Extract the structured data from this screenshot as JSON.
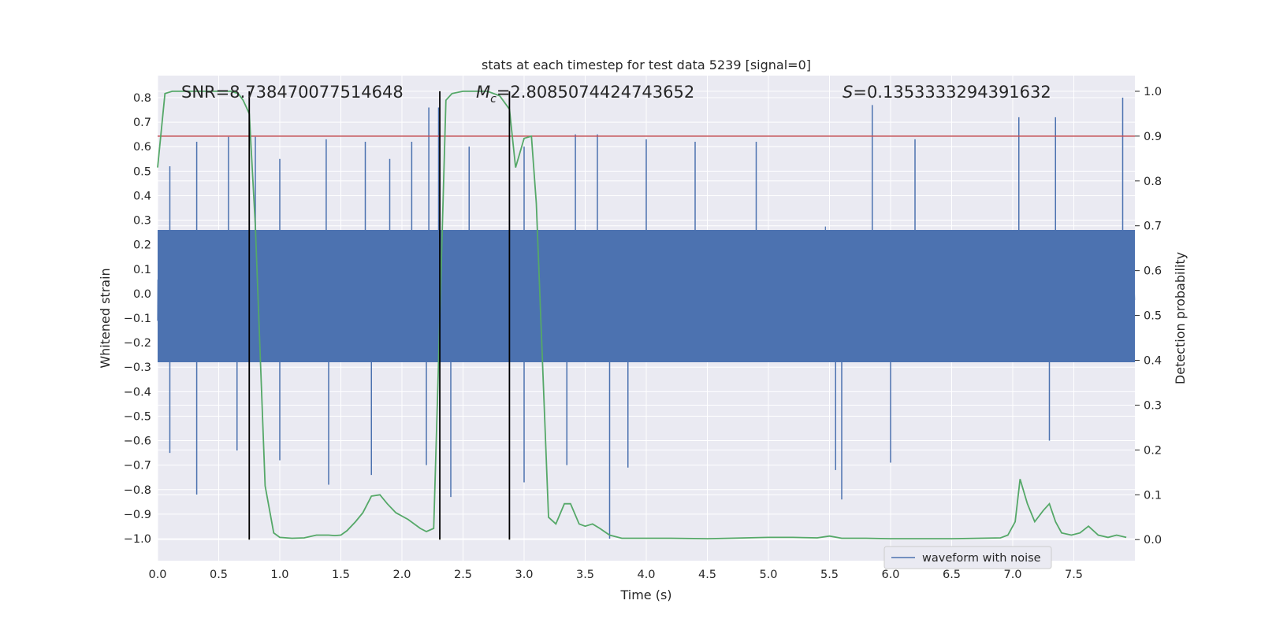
{
  "chart_data": {
    "type": "line",
    "title": "stats at each timestep for test data 5239 [signal=0]",
    "xlabel": "Time (s)",
    "ylabel": "Whitened strain",
    "ylabel_right": "Detection probability",
    "xlim": [
      0.0,
      8.0
    ],
    "ylim": [
      -1.09,
      0.89
    ],
    "ylim_right": [
      -0.047,
      1.035
    ],
    "x_ticks": [
      "0.0",
      "0.5",
      "1.0",
      "1.5",
      "2.0",
      "2.5",
      "3.0",
      "3.5",
      "4.0",
      "4.5",
      "5.0",
      "5.5",
      "6.0",
      "6.5",
      "7.0",
      "7.5"
    ],
    "y_ticks": [
      "0.8",
      "0.7",
      "0.6",
      "0.5",
      "0.4",
      "0.3",
      "0.2",
      "0.1",
      "0.0",
      "−0.1",
      "−0.2",
      "−0.3",
      "−0.4",
      "−0.5",
      "−0.6",
      "−0.7",
      "−0.8",
      "−0.9",
      "−1.0"
    ],
    "y_ticks_right": [
      "1.0",
      "0.9",
      "0.8",
      "0.7",
      "0.6",
      "0.5",
      "0.4",
      "0.3",
      "0.2",
      "0.1",
      "0.0"
    ],
    "grid": true,
    "legend": {
      "entries": [
        "waveform with noise"
      ],
      "placement": "lower-right"
    },
    "annotations": {
      "snr": "SNR=8.738470077514648",
      "mc_symbol": "M",
      "mc_sub": "c",
      "mc_value": "=2.8085074424743652",
      "s_symbol": "S",
      "s_value": "=0.1353333294391632"
    },
    "threshold": {
      "value": 0.9,
      "axis": "right",
      "color": "#c44e52"
    },
    "vertical_markers": [
      0.75,
      2.31,
      2.88
    ],
    "colors": {
      "waveform": "#4c72b0",
      "probability": "#55a868",
      "threshold": "#c44e52",
      "markers": "#000000",
      "background": "#eaeaf2"
    },
    "series": [
      {
        "name": "waveform with noise",
        "axis": "left",
        "spikes_high": [
          [
            0.1,
            0.52
          ],
          [
            0.32,
            0.62
          ],
          [
            0.58,
            0.64
          ],
          [
            0.8,
            0.64
          ],
          [
            1.0,
            0.55
          ],
          [
            1.38,
            0.63
          ],
          [
            1.7,
            0.62
          ],
          [
            1.9,
            0.55
          ],
          [
            2.08,
            0.62
          ],
          [
            2.22,
            0.76
          ],
          [
            2.3,
            0.76
          ],
          [
            2.55,
            0.6
          ],
          [
            3.0,
            0.6
          ],
          [
            3.42,
            0.65
          ],
          [
            3.6,
            0.65
          ],
          [
            4.0,
            0.63
          ],
          [
            4.4,
            0.62
          ],
          [
            4.9,
            0.62
          ],
          [
            5.85,
            0.77
          ],
          [
            6.2,
            0.63
          ],
          [
            7.05,
            0.72
          ],
          [
            7.35,
            0.72
          ],
          [
            7.9,
            0.8
          ]
        ],
        "spikes_low": [
          [
            0.1,
            -0.65
          ],
          [
            0.32,
            -0.82
          ],
          [
            0.65,
            -0.64
          ],
          [
            1.0,
            -0.68
          ],
          [
            1.4,
            -0.78
          ],
          [
            1.75,
            -0.74
          ],
          [
            2.2,
            -0.7
          ],
          [
            2.4,
            -0.83
          ],
          [
            3.0,
            -0.77
          ],
          [
            3.35,
            -0.7
          ],
          [
            3.7,
            -1.0
          ],
          [
            3.85,
            -0.71
          ],
          [
            5.55,
            -0.72
          ],
          [
            5.6,
            -0.84
          ],
          [
            6.0,
            -0.69
          ],
          [
            7.3,
            -0.6
          ]
        ]
      },
      {
        "name": "detection probability",
        "axis": "right",
        "x": [
          0.0,
          0.06,
          0.12,
          0.2,
          0.3,
          0.4,
          0.5,
          0.6,
          0.66,
          0.7,
          0.75,
          0.8,
          0.88,
          0.95,
          1.0,
          1.1,
          1.2,
          1.3,
          1.4,
          1.45,
          1.5,
          1.55,
          1.62,
          1.68,
          1.75,
          1.82,
          1.88,
          1.95,
          2.05,
          2.15,
          2.2,
          2.26,
          2.3,
          2.36,
          2.41,
          2.5,
          2.6,
          2.7,
          2.8,
          2.88,
          2.93,
          3.0,
          3.06,
          3.1,
          3.2,
          3.26,
          3.33,
          3.38,
          3.45,
          3.5,
          3.56,
          3.62,
          3.7,
          3.8,
          3.9,
          4.0,
          4.2,
          4.5,
          5.0,
          5.2,
          5.4,
          5.5,
          5.6,
          5.8,
          6.0,
          6.5,
          6.9,
          6.96,
          7.02,
          7.06,
          7.12,
          7.18,
          7.25,
          7.3,
          7.35,
          7.4,
          7.48,
          7.55,
          7.62,
          7.7,
          7.78,
          7.85,
          7.93
        ],
        "y": [
          0.83,
          0.995,
          1.0,
          1.0,
          1.0,
          1.0,
          1.0,
          1.0,
          0.995,
          0.98,
          0.95,
          0.7,
          0.12,
          0.015,
          0.005,
          0.003,
          0.004,
          0.01,
          0.01,
          0.009,
          0.01,
          0.02,
          0.04,
          0.06,
          0.097,
          0.1,
          0.08,
          0.06,
          0.045,
          0.025,
          0.018,
          0.025,
          0.4,
          0.98,
          0.995,
          1.0,
          1.0,
          1.0,
          0.99,
          0.96,
          0.83,
          0.895,
          0.9,
          0.75,
          0.05,
          0.035,
          0.08,
          0.08,
          0.035,
          0.03,
          0.035,
          0.025,
          0.01,
          0.003,
          0.003,
          0.003,
          0.003,
          0.002,
          0.005,
          0.005,
          0.004,
          0.008,
          0.003,
          0.003,
          0.002,
          0.002,
          0.004,
          0.01,
          0.04,
          0.135,
          0.08,
          0.04,
          0.065,
          0.08,
          0.04,
          0.015,
          0.01,
          0.015,
          0.03,
          0.01,
          0.005,
          0.01,
          0.005
        ]
      }
    ]
  }
}
